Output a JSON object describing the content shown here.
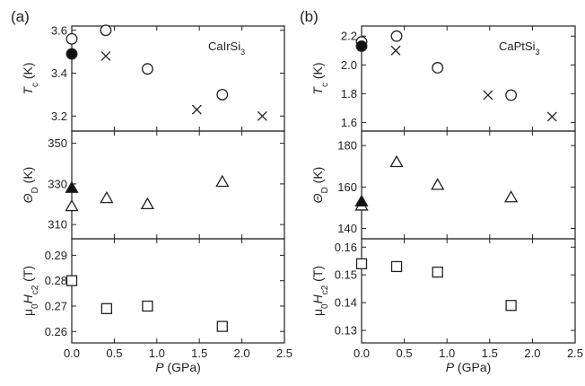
{
  "figure": {
    "panel_labels": [
      "(a)",
      "(b)"
    ],
    "compounds": [
      {
        "base": "CaIrSi",
        "sub": "3"
      },
      {
        "base": "CaPtSi",
        "sub": "3"
      }
    ],
    "xlabel": {
      "italic": "P",
      "rest": " (GPa)"
    },
    "row_ylabels": [
      {
        "main": "T",
        "sub": "c",
        "rest": " (K)",
        "mainItalic": true,
        "prefix": ""
      },
      {
        "main": "Θ",
        "sub": "D",
        "rest": " (K)",
        "mainItalic": true,
        "prefix": ""
      },
      {
        "main": "H",
        "sub": "c2",
        "rest": " (T)",
        "mainItalic": true,
        "prefix": "μ0"
      }
    ]
  },
  "chart_data": [
    {
      "type": "scatter",
      "panel": "(a)",
      "row": "Tc",
      "ylabel": "Tc (K)",
      "xlabel": "P (GPa)",
      "xlim": [
        0,
        2.5
      ],
      "ylim": [
        3.13,
        3.62
      ],
      "xticks": [
        "0.0",
        "0.5",
        "1.0",
        "1.5",
        "2.0",
        "2.5"
      ],
      "yticks": [
        3.2,
        3.4,
        3.6
      ],
      "series": [
        {
          "marker": "open-circle",
          "points": [
            [
              0.0,
              3.56
            ],
            [
              0.4,
              3.6
            ],
            [
              0.89,
              3.42
            ],
            [
              1.77,
              3.3
            ]
          ]
        },
        {
          "marker": "filled-circle",
          "points": [
            [
              0.0,
              3.49
            ]
          ]
        },
        {
          "marker": "cross",
          "points": [
            [
              0.4,
              3.48
            ],
            [
              1.47,
              3.23
            ],
            [
              2.24,
              3.2
            ]
          ]
        }
      ]
    },
    {
      "type": "scatter",
      "panel": "(a)",
      "row": "ThetaD",
      "ylabel": "ΘD (K)",
      "xlabel": "P (GPa)",
      "xlim": [
        0,
        2.5
      ],
      "ylim": [
        303,
        356
      ],
      "xticks": [
        "0.0",
        "0.5",
        "1.0",
        "1.5",
        "2.0",
        "2.5"
      ],
      "yticks": [
        310,
        330,
        350
      ],
      "series": [
        {
          "marker": "open-triangle",
          "points": [
            [
              0.0,
              319
            ],
            [
              0.41,
              323
            ],
            [
              0.89,
              320
            ],
            [
              1.77,
              331
            ]
          ]
        },
        {
          "marker": "filled-triangle",
          "points": [
            [
              0.0,
              328
            ]
          ]
        }
      ]
    },
    {
      "type": "scatter",
      "panel": "(a)",
      "row": "Hc2",
      "ylabel": "μ0Hc2 (T)",
      "xlabel": "P (GPa)",
      "xlim": [
        0,
        2.5
      ],
      "ylim": [
        0.2555,
        0.2965
      ],
      "xticks": [
        "0.0",
        "0.5",
        "1.0",
        "1.5",
        "2.0",
        "2.5"
      ],
      "yticks": [
        0.26,
        0.27,
        0.28,
        0.29
      ],
      "series": [
        {
          "marker": "open-square",
          "points": [
            [
              0.0,
              0.28
            ],
            [
              0.41,
              0.269
            ],
            [
              0.89,
              0.27
            ],
            [
              1.77,
              0.262
            ]
          ]
        }
      ]
    },
    {
      "type": "scatter",
      "panel": "(b)",
      "row": "Tc",
      "ylabel": "Tc (K)",
      "xlabel": "P (GPa)",
      "xlim": [
        0,
        2.5
      ],
      "ylim": [
        1.54,
        2.27
      ],
      "xticks": [
        "0.0",
        "0.5",
        "1.0",
        "1.5",
        "2.0",
        "2.5"
      ],
      "yticks": [
        1.6,
        1.8,
        2.0,
        2.2
      ],
      "series": [
        {
          "marker": "open-circle",
          "points": [
            [
              0.0,
              2.16
            ],
            [
              0.41,
              2.2
            ],
            [
              0.89,
              1.98
            ],
            [
              1.75,
              1.79
            ]
          ]
        },
        {
          "marker": "filled-circle",
          "points": [
            [
              0.0,
              2.13
            ]
          ]
        },
        {
          "marker": "cross",
          "points": [
            [
              0.4,
              2.1
            ],
            [
              1.48,
              1.79
            ],
            [
              2.23,
              1.64
            ]
          ]
        }
      ]
    },
    {
      "type": "scatter",
      "panel": "(b)",
      "row": "ThetaD",
      "ylabel": "ΘD (K)",
      "xlabel": "P (GPa)",
      "xlim": [
        0,
        2.5
      ],
      "ylim": [
        135,
        187
      ],
      "xticks": [
        "0.0",
        "0.5",
        "1.0",
        "1.5",
        "2.0",
        "2.5"
      ],
      "yticks": [
        140,
        160,
        180
      ],
      "series": [
        {
          "marker": "open-triangle",
          "points": [
            [
              0.0,
              151
            ],
            [
              0.41,
              172
            ],
            [
              0.89,
              161
            ],
            [
              1.75,
              155
            ]
          ]
        },
        {
          "marker": "filled-triangle",
          "points": [
            [
              0.0,
              153
            ]
          ]
        }
      ]
    },
    {
      "type": "scatter",
      "panel": "(b)",
      "row": "Hc2",
      "ylabel": "μ0Hc2 (T)",
      "xlabel": "P (GPa)",
      "xlim": [
        0,
        2.5
      ],
      "ylim": [
        0.1255,
        0.163
      ],
      "xticks": [
        "0.0",
        "0.5",
        "1.0",
        "1.5",
        "2.0",
        "2.5"
      ],
      "yticks": [
        0.13,
        0.14,
        0.15,
        0.16
      ],
      "series": [
        {
          "marker": "open-square",
          "points": [
            [
              0.0,
              0.154
            ],
            [
              0.41,
              0.153
            ],
            [
              0.89,
              0.151
            ],
            [
              1.75,
              0.139
            ]
          ]
        }
      ]
    }
  ]
}
